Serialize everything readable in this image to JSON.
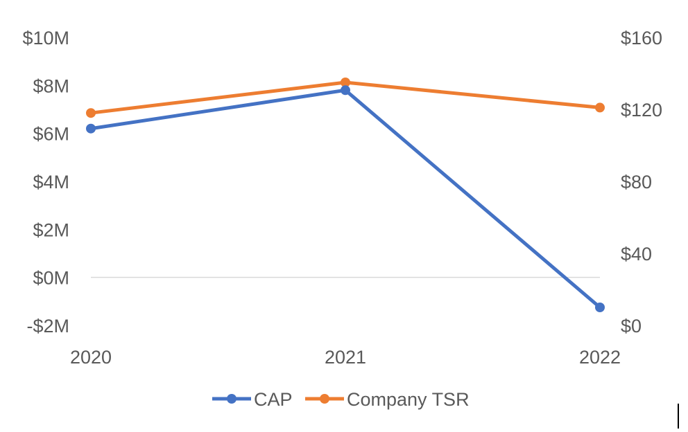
{
  "chart_data": {
    "type": "line",
    "categories": [
      "2020",
      "2021",
      "2022"
    ],
    "series": [
      {
        "name": "CAP",
        "axis": "left",
        "color": "#4472C4",
        "values": [
          6.2,
          7.8,
          -1.25
        ]
      },
      {
        "name": "Company TSR",
        "axis": "right",
        "color": "#ED7D31",
        "values": [
          118,
          135,
          121
        ]
      }
    ],
    "left_axis": {
      "min": -2,
      "max": 10,
      "ticks": [
        {
          "value": 10,
          "label": "$10M"
        },
        {
          "value": 8,
          "label": "$8M"
        },
        {
          "value": 6,
          "label": "$6M"
        },
        {
          "value": 4,
          "label": "$4M"
        },
        {
          "value": 2,
          "label": "$2M"
        },
        {
          "value": 0,
          "label": "$0M"
        },
        {
          "value": -2,
          "label": "-$2M"
        }
      ]
    },
    "right_axis": {
      "min": 0,
      "max": 160,
      "ticks": [
        {
          "value": 160,
          "label": "$160"
        },
        {
          "value": 120,
          "label": "$120"
        },
        {
          "value": 80,
          "label": "$80"
        },
        {
          "value": 40,
          "label": "$40"
        },
        {
          "value": 0,
          "label": "$0"
        }
      ]
    },
    "zero_line": true,
    "legend_position": "bottom",
    "title": "",
    "xlabel": "",
    "ylabel": ""
  }
}
